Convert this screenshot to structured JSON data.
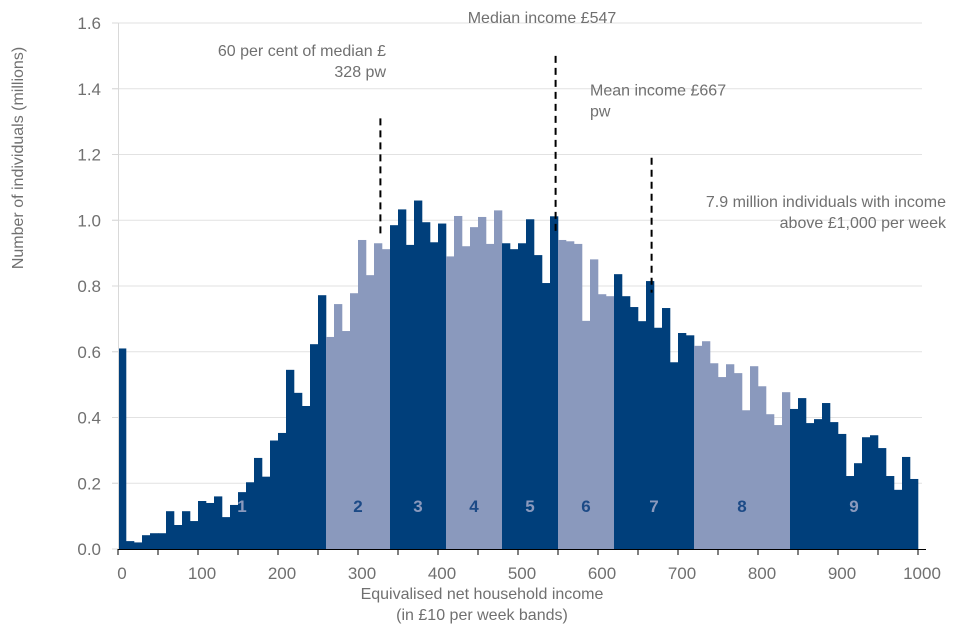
{
  "chart_data": {
    "type": "bar",
    "title": "",
    "xlabel_line1": "Equivalised net household income",
    "xlabel_line2": "(in £10 per week bands)",
    "ylabel": "Number of individuals (millions)",
    "xlim": [
      0,
      1000
    ],
    "ylim": [
      0,
      1.6
    ],
    "band_width": 10,
    "grid": true,
    "x_ticks": [
      "0",
      "100",
      "200",
      "300",
      "400",
      "500",
      "600",
      "700",
      "800",
      "900",
      "1000"
    ],
    "x_tick_values": [
      0,
      100,
      200,
      300,
      400,
      500,
      600,
      700,
      800,
      900,
      1000
    ],
    "y_ticks": [
      "0.0",
      "0.2",
      "0.4",
      "0.6",
      "0.8",
      "1.0",
      "1.2",
      "1.4",
      "1.6"
    ],
    "y_tick_values": [
      0,
      0.2,
      0.4,
      0.6,
      0.8,
      1.0,
      1.2,
      1.4,
      1.6
    ],
    "colors": {
      "dark": "#003f7b",
      "light": "#8a99bd",
      "dark_label": "#8a99bd",
      "light_label": "#1c4a86",
      "grid": "#e2e2e2",
      "annotation_line": "#000000"
    },
    "band_starts": [
      0,
      10,
      20,
      30,
      40,
      50,
      60,
      70,
      80,
      90,
      100,
      110,
      120,
      130,
      140,
      150,
      160,
      170,
      180,
      190,
      200,
      210,
      220,
      230,
      240,
      250,
      260,
      270,
      280,
      290,
      300,
      310,
      320,
      330,
      340,
      350,
      360,
      370,
      380,
      390,
      400,
      410,
      420,
      430,
      440,
      450,
      460,
      470,
      480,
      490,
      500,
      510,
      520,
      530,
      540,
      550,
      560,
      570,
      580,
      590,
      600,
      610,
      620,
      630,
      640,
      650,
      660,
      670,
      680,
      690,
      700,
      710,
      720,
      730,
      740,
      750,
      760,
      770,
      780,
      790,
      800,
      810,
      820,
      830,
      840,
      850,
      860,
      870,
      880,
      890,
      900,
      910,
      920,
      930,
      940,
      950,
      960,
      970,
      980,
      990
    ],
    "values": [
      0.61,
      0.024,
      0.02,
      0.042,
      0.048,
      0.048,
      0.115,
      0.073,
      0.115,
      0.085,
      0.146,
      0.14,
      0.16,
      0.097,
      0.134,
      0.173,
      0.203,
      0.277,
      0.22,
      0.33,
      0.353,
      0.545,
      0.475,
      0.435,
      0.623,
      0.772,
      0.645,
      0.745,
      0.663,
      0.778,
      0.94,
      0.833,
      0.93,
      0.912,
      0.985,
      1.033,
      0.925,
      1.06,
      0.994,
      0.933,
      0.99,
      0.89,
      1.013,
      0.921,
      0.979,
      1.01,
      0.928,
      1.03,
      0.93,
      0.912,
      0.93,
      1.003,
      0.894,
      0.809,
      1.012,
      0.94,
      0.936,
      0.928,
      0.694,
      0.881,
      0.775,
      0.769,
      0.836,
      0.769,
      0.736,
      0.693,
      0.815,
      0.673,
      0.733,
      0.568,
      0.657,
      0.65,
      0.618,
      0.632,
      0.565,
      0.523,
      0.562,
      0.535,
      0.422,
      0.556,
      0.495,
      0.41,
      0.377,
      0.477,
      0.426,
      0.459,
      0.383,
      0.395,
      0.444,
      0.386,
      0.35,
      0.222,
      0.261,
      0.34,
      0.346,
      0.307,
      0.222,
      0.18,
      0.28,
      0.213
    ],
    "deciles": [
      {
        "label": "1",
        "from": 0,
        "to": 260,
        "shade": "dark"
      },
      {
        "label": "2",
        "from": 260,
        "to": 340,
        "shade": "light"
      },
      {
        "label": "3",
        "from": 340,
        "to": 410,
        "shade": "dark"
      },
      {
        "label": "4",
        "from": 410,
        "to": 480,
        "shade": "light"
      },
      {
        "label": "5",
        "from": 480,
        "to": 550,
        "shade": "dark"
      },
      {
        "label": "6",
        "from": 550,
        "to": 620,
        "shade": "light"
      },
      {
        "label": "7",
        "from": 620,
        "to": 720,
        "shade": "dark"
      },
      {
        "label": "8",
        "from": 720,
        "to": 840,
        "shade": "light"
      },
      {
        "label": "9",
        "from": 840,
        "to": 1000,
        "shade": "dark"
      }
    ],
    "reference_lines": [
      {
        "name": "sixty-percent-median",
        "x": 328,
        "y_from": 0.95,
        "y_to": 1.31
      },
      {
        "name": "median",
        "x": 547,
        "y_from": 0.96,
        "y_to": 1.5
      },
      {
        "name": "mean",
        "x": 667,
        "y_from": 0.78,
        "y_to": 1.19
      }
    ],
    "annotations": [
      {
        "name": "sixty-percent-median-annotation",
        "lines": [
          "60 per cent of median £",
          "328 pw"
        ],
        "anchor": "end",
        "x": 335,
        "y": 1.5
      },
      {
        "name": "median-annotation",
        "lines": [
          "Median income £547"
        ],
        "anchor": "middle",
        "x": 530,
        "y": 1.6
      },
      {
        "name": "mean-annotation",
        "lines": [
          "Mean income £667",
          "pw"
        ],
        "anchor": "start",
        "x": 590,
        "y": 1.38
      },
      {
        "name": "above-1000-annotation",
        "lines": [
          "7.9 million individuals with income",
          "above £1,000 per week"
        ],
        "anchor": "end",
        "x": 1035,
        "y": 1.04
      }
    ]
  }
}
